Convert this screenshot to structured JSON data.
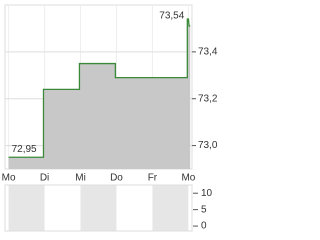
{
  "chart_data": [
    {
      "type": "step-area",
      "annotations": [
        "73,54",
        "72,95"
      ],
      "series": [
        {
          "color": "#3a8a3a",
          "fill": "#c8c8c8",
          "x": [
            0,
            0.97,
            0.97,
            1.97,
            1.97,
            2.97,
            2.97,
            4.97,
            4.97,
            5.0,
            5.02,
            5.05
          ],
          "values": [
            72.95,
            72.95,
            73.24,
            73.24,
            73.35,
            73.35,
            73.29,
            73.29,
            73.54,
            73.54,
            73.51,
            73.51
          ]
        }
      ],
      "xlim": [
        -0.1,
        5.1
      ],
      "xticks": [
        {
          "value": 0,
          "label": "Mo"
        },
        {
          "value": 1,
          "label": "Di"
        },
        {
          "value": 2,
          "label": "Mi"
        },
        {
          "value": 3,
          "label": "Do"
        },
        {
          "value": 4,
          "label": "Fr"
        },
        {
          "value": 5,
          "label": "Mo"
        }
      ],
      "ylim": [
        72.9,
        73.6
      ],
      "yticks": [
        {
          "value": 73.0,
          "label": "73,0"
        },
        {
          "value": 73.2,
          "label": "73,2"
        },
        {
          "value": 73.4,
          "label": "73,4"
        }
      ],
      "grid": true
    },
    {
      "type": "volume",
      "xlim": [
        -0.1,
        5.1
      ],
      "ylim": [
        -1.5,
        12.5
      ],
      "yticks": [
        0,
        5,
        10
      ]
    }
  ]
}
